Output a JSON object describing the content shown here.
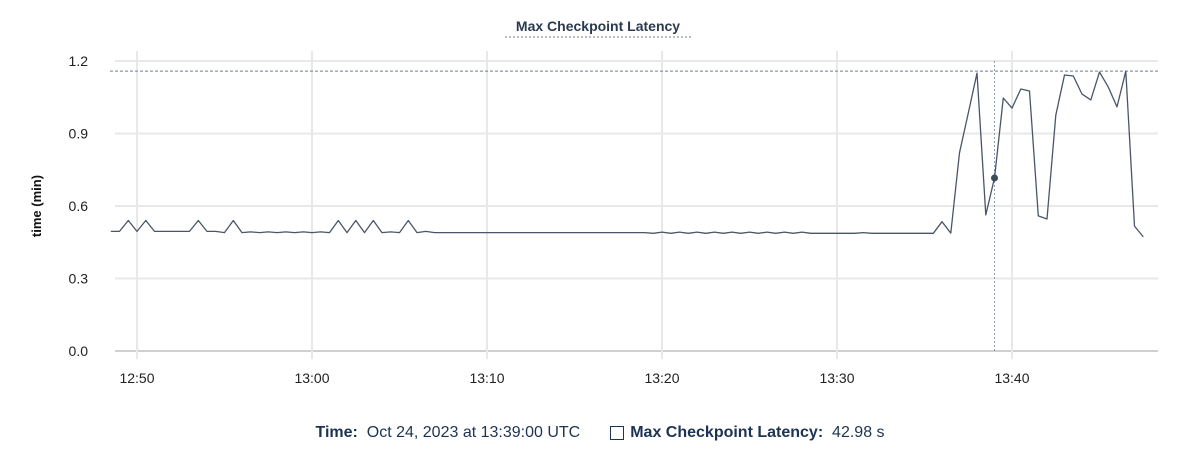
{
  "chart_data": {
    "type": "line",
    "title": "Max Checkpoint Latency",
    "xlabel": "",
    "ylabel": "time (min)",
    "ylim": [
      0,
      1.2
    ],
    "grid": true,
    "y_ticks": [
      "0.0",
      "0.3",
      "0.6",
      "0.9",
      "1.2"
    ],
    "x_ticks": [
      "12:50",
      "13:00",
      "13:10",
      "13:20",
      "13:30",
      "13:40"
    ],
    "line_color": "#4a5568",
    "max_line_value": 1.158,
    "x": [
      "12:48:30",
      "12:49:00",
      "12:49:30",
      "12:50:00",
      "12:50:30",
      "12:51:00",
      "12:51:30",
      "12:52:00",
      "12:52:30",
      "12:53:00",
      "12:53:30",
      "12:54:00",
      "12:54:30",
      "12:55:00",
      "12:55:30",
      "12:56:00",
      "12:56:30",
      "12:57:00",
      "12:57:30",
      "12:58:00",
      "12:58:30",
      "12:59:00",
      "12:59:30",
      "13:00:00",
      "13:00:30",
      "13:01:00",
      "13:01:30",
      "13:02:00",
      "13:02:30",
      "13:03:00",
      "13:03:30",
      "13:04:00",
      "13:04:30",
      "13:05:00",
      "13:05:30",
      "13:06:00",
      "13:06:30",
      "13:07:00",
      "13:07:30",
      "13:08:00",
      "13:08:30",
      "13:09:00",
      "13:09:30",
      "13:10:00",
      "13:10:30",
      "13:11:00",
      "13:11:30",
      "13:12:00",
      "13:12:30",
      "13:13:00",
      "13:13:30",
      "13:14:00",
      "13:14:30",
      "13:15:00",
      "13:15:30",
      "13:16:00",
      "13:16:30",
      "13:17:00",
      "13:17:30",
      "13:18:00",
      "13:18:30",
      "13:19:00",
      "13:19:30",
      "13:20:00",
      "13:20:30",
      "13:21:00",
      "13:21:30",
      "13:22:00",
      "13:22:30",
      "13:23:00",
      "13:23:30",
      "13:24:00",
      "13:24:30",
      "13:25:00",
      "13:25:30",
      "13:26:00",
      "13:26:30",
      "13:27:00",
      "13:27:30",
      "13:28:00",
      "13:28:30",
      "13:29:00",
      "13:29:30",
      "13:30:00",
      "13:30:30",
      "13:31:00",
      "13:31:30",
      "13:32:00",
      "13:32:30",
      "13:33:00",
      "13:33:30",
      "13:34:00",
      "13:34:30",
      "13:35:00",
      "13:35:30",
      "13:36:00",
      "13:36:30",
      "13:37:00",
      "13:37:30",
      "13:38:00",
      "13:38:30",
      "13:39:00",
      "13:39:30",
      "13:40:00",
      "13:40:30",
      "13:41:00",
      "13:41:30",
      "13:42:00",
      "13:42:30",
      "13:43:00",
      "13:43:30",
      "13:44:00",
      "13:44:30",
      "13:45:00",
      "13:45:30",
      "13:46:00",
      "13:46:30",
      "13:47:00",
      "13:47:30"
    ],
    "series": [
      {
        "values": [
          0.495,
          0.495,
          0.54,
          0.495,
          0.54,
          0.495,
          0.495,
          0.495,
          0.495,
          0.495,
          0.54,
          0.495,
          0.495,
          0.49,
          0.54,
          0.49,
          0.493,
          0.49,
          0.493,
          0.49,
          0.493,
          0.49,
          0.493,
          0.49,
          0.493,
          0.49,
          0.54,
          0.49,
          0.54,
          0.49,
          0.54,
          0.49,
          0.493,
          0.49,
          0.54,
          0.49,
          0.495,
          0.49,
          0.49,
          0.49,
          0.49,
          0.49,
          0.49,
          0.49,
          0.49,
          0.49,
          0.49,
          0.49,
          0.49,
          0.49,
          0.49,
          0.49,
          0.49,
          0.49,
          0.49,
          0.49,
          0.49,
          0.49,
          0.49,
          0.49,
          0.49,
          0.49,
          0.487,
          0.492,
          0.487,
          0.492,
          0.487,
          0.492,
          0.487,
          0.492,
          0.487,
          0.492,
          0.487,
          0.492,
          0.487,
          0.492,
          0.487,
          0.492,
          0.487,
          0.492,
          0.487,
          0.487,
          0.487,
          0.487,
          0.487,
          0.487,
          0.49,
          0.487,
          0.487,
          0.487,
          0.487,
          0.487,
          0.487,
          0.487,
          0.487,
          0.535,
          0.488,
          0.82,
          0.985,
          1.15,
          0.563,
          0.716,
          1.047,
          1.005,
          1.084,
          1.076,
          0.559,
          0.546,
          0.976,
          1.142,
          1.138,
          1.063,
          1.039,
          1.154,
          1.092,
          1.01,
          1.158,
          0.517,
          0.472
        ]
      }
    ],
    "hover": {
      "x": "13:39:00",
      "value": 0.716
    }
  },
  "legend": {
    "time_label": "Time:",
    "time_value": "Oct 24, 2023 at 13:39:00 UTC",
    "series_label": "Max Checkpoint Latency:",
    "series_value": "42.98 s"
  }
}
